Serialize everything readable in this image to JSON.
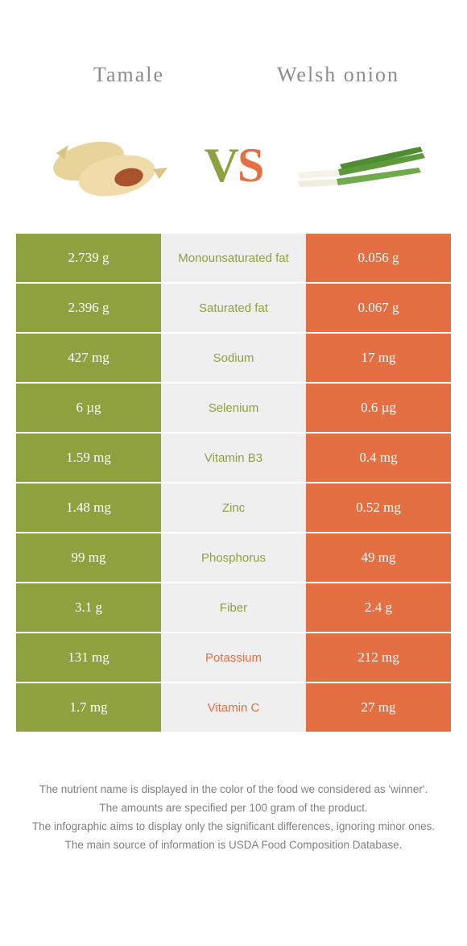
{
  "colors": {
    "green": "#8da23f",
    "orange": "#e36f43",
    "lightGray": "#efefef",
    "textGray": "#8c8c8c"
  },
  "header": {
    "left_title": "Tamale",
    "right_title": "Welsh onion",
    "vs_v": "V",
    "vs_s": "S"
  },
  "rows": [
    {
      "label": "Monounsaturated fat",
      "left": "2.739 g",
      "right": "0.056 g",
      "winner": "left"
    },
    {
      "label": "Saturated fat",
      "left": "2.396 g",
      "right": "0.067 g",
      "winner": "left"
    },
    {
      "label": "Sodium",
      "left": "427 mg",
      "right": "17 mg",
      "winner": "left"
    },
    {
      "label": "Selenium",
      "left": "6 µg",
      "right": "0.6 µg",
      "winner": "left"
    },
    {
      "label": "Vitamin B3",
      "left": "1.59 mg",
      "right": "0.4 mg",
      "winner": "left"
    },
    {
      "label": "Zinc",
      "left": "1.48 mg",
      "right": "0.52 mg",
      "winner": "left"
    },
    {
      "label": "Phosphorus",
      "left": "99 mg",
      "right": "49 mg",
      "winner": "left"
    },
    {
      "label": "Fiber",
      "left": "3.1 g",
      "right": "2.4 g",
      "winner": "left"
    },
    {
      "label": "Potassium",
      "left": "131 mg",
      "right": "212 mg",
      "winner": "right"
    },
    {
      "label": "Vitamin C",
      "left": "1.7 mg",
      "right": "27 mg",
      "winner": "right"
    }
  ],
  "footnotes": {
    "line1": "The nutrient name is displayed in the color of the food we considered as 'winner'.",
    "line2": "The amounts are specified per 100 gram of the product.",
    "line3": "The infographic aims to display only the significant differences, ignoring minor ones.",
    "line4": "The main source of information is USDA Food Composition Database."
  }
}
